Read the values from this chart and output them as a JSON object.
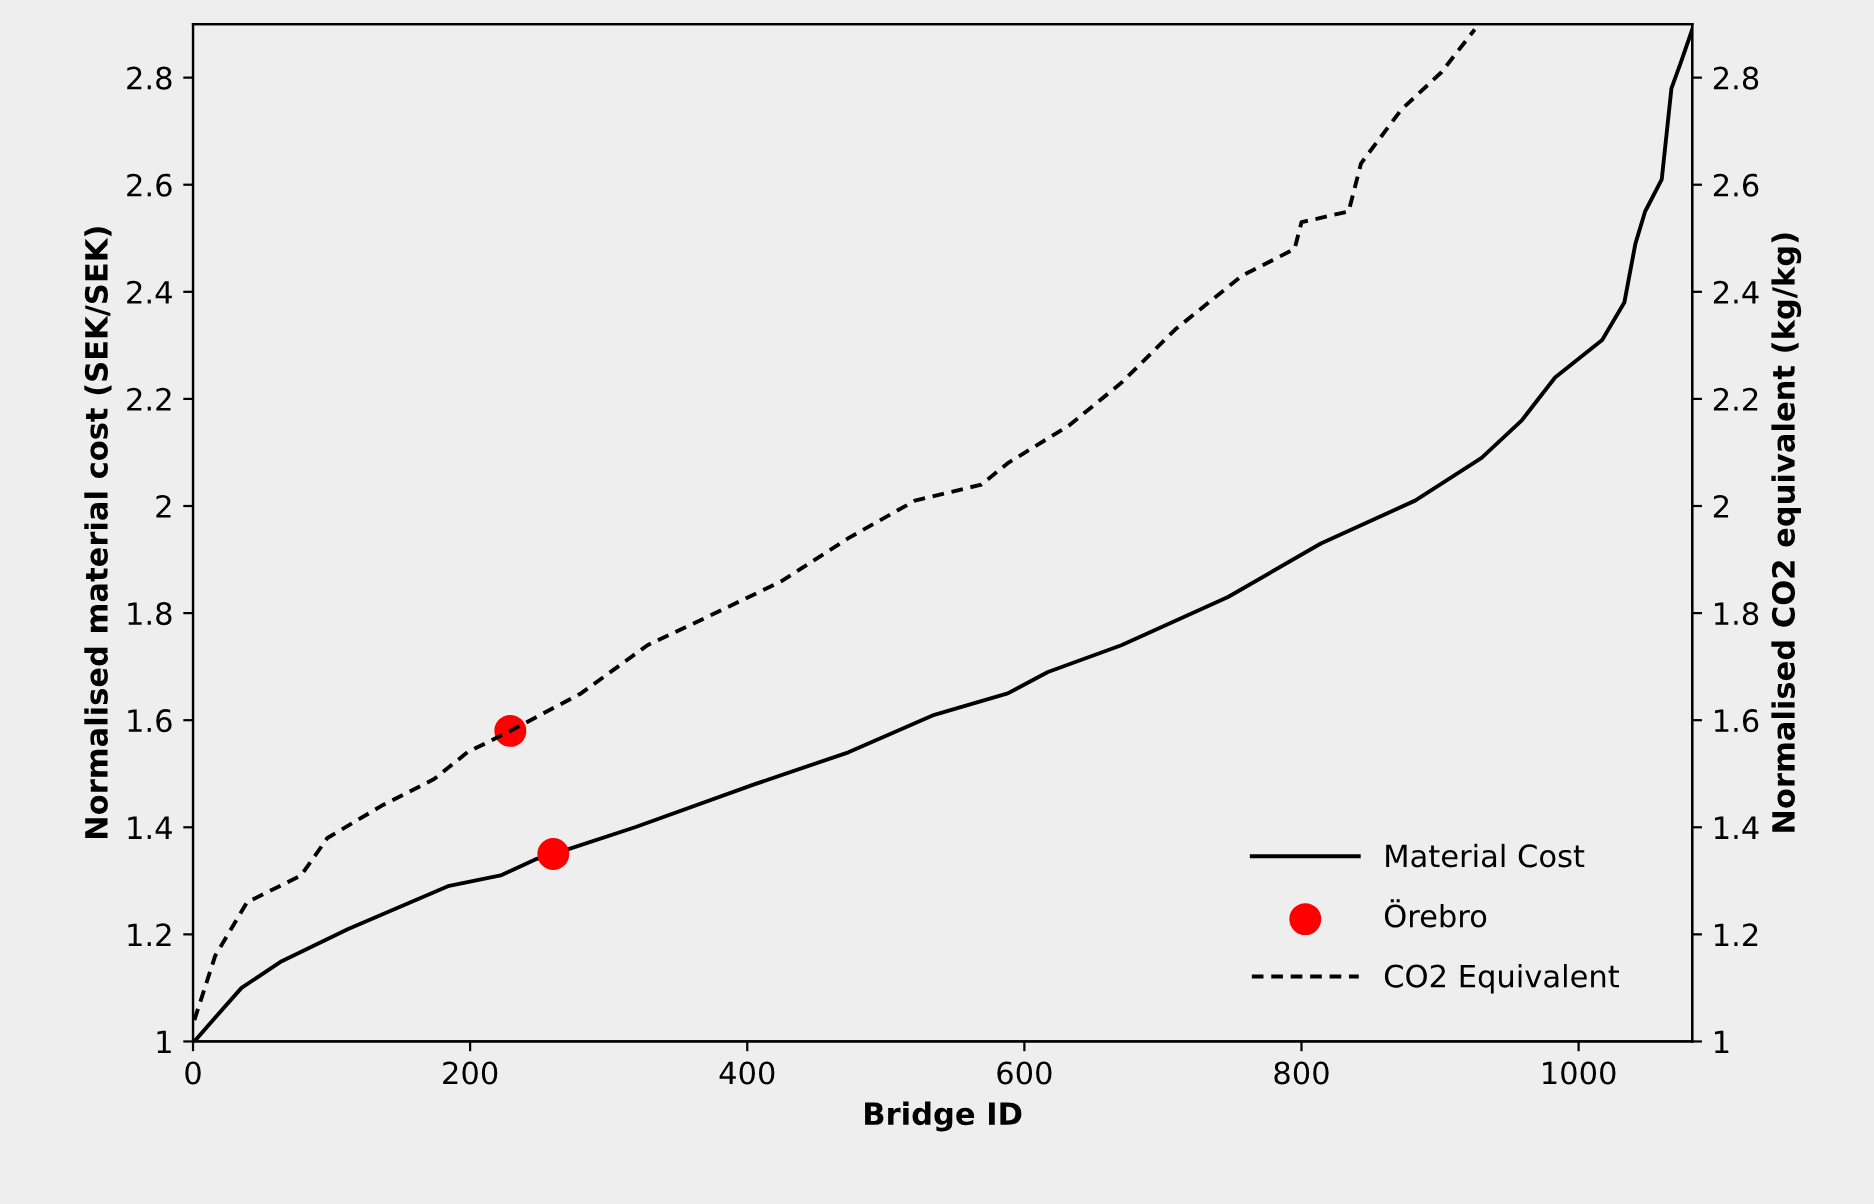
{
  "chart_data": {
    "type": "line",
    "xlabel": "Bridge ID",
    "ylabel": "Normalised material cost (SEK/SEK)",
    "y2label": "Normalised CO2 equivalent (kg/kg)",
    "xlim": [
      0,
      1082
    ],
    "xticks": [
      0,
      200,
      400,
      600,
      800,
      1000
    ],
    "ylim": [
      1,
      2.9
    ],
    "yticks": [
      1,
      1.2,
      1.4,
      1.6,
      1.8,
      2,
      2.2,
      2.4,
      2.6,
      2.8
    ],
    "y2lim": [
      1,
      2.9
    ],
    "y2ticks": [
      1,
      1.2,
      1.4,
      1.6,
      1.8,
      2,
      2.2,
      2.4,
      2.6,
      2.8
    ],
    "grid": false,
    "legend": "bottom right",
    "series": [
      {
        "name": "Material Cost",
        "color": "#000000",
        "line_style": "solid",
        "x": [
          1,
          11,
          35,
          64,
          112,
          184,
          222,
          247,
          260,
          319,
          405,
          473,
          535,
          588,
          617,
          670,
          747,
          814,
          882,
          930,
          959,
          983,
          1017,
          1033,
          1041,
          1048,
          1060,
          1067,
          1074,
          1082
        ],
        "values": [
          1.0,
          1.03,
          1.1,
          1.15,
          1.21,
          1.29,
          1.31,
          1.34,
          1.35,
          1.4,
          1.48,
          1.54,
          1.61,
          1.65,
          1.69,
          1.74,
          1.83,
          1.93,
          2.01,
          2.09,
          2.16,
          2.24,
          2.31,
          2.38,
          2.49,
          2.55,
          2.61,
          2.78,
          2.83,
          2.89
        ]
      },
      {
        "name": "Örebro",
        "type": "scatter",
        "color": "#ff0000",
        "marker": "circle",
        "x": [
          260,
          229
        ],
        "values": [
          1.35,
          1.58
        ]
      },
      {
        "name": "CO2 Equivalent",
        "axis": "y2",
        "color": "#000000",
        "line_style": "dashed",
        "x": [
          1,
          16,
          39,
          78,
          97,
          136,
          174,
          198,
          229,
          280,
          328,
          377,
          425,
          473,
          521,
          569,
          588,
          632,
          670,
          709,
          757,
          795,
          800,
          834,
          843,
          872,
          901,
          925
        ],
        "values": [
          1.04,
          1.16,
          1.26,
          1.31,
          1.38,
          1.44,
          1.49,
          1.54,
          1.58,
          1.65,
          1.74,
          1.8,
          1.86,
          1.94,
          2.01,
          2.04,
          2.08,
          2.15,
          2.23,
          2.33,
          2.43,
          2.48,
          2.53,
          2.55,
          2.64,
          2.74,
          2.81,
          2.89
        ]
      }
    ]
  }
}
